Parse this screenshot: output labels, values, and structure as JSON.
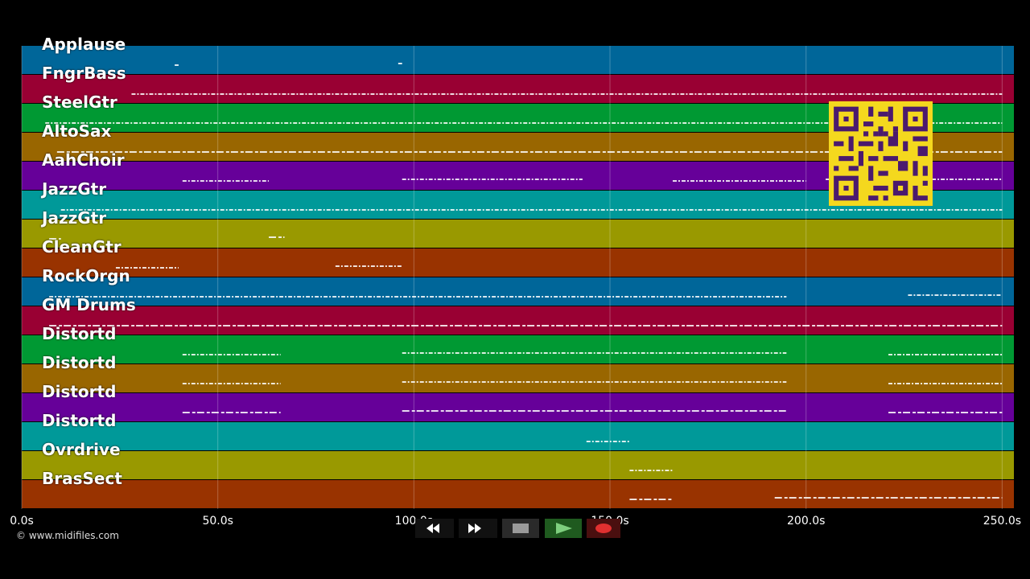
{
  "tracks": [
    {
      "name": "Applause",
      "color": "#006699"
    },
    {
      "name": "FngrBass",
      "color": "#990033"
    },
    {
      "name": "SteelGtr",
      "color": "#009933"
    },
    {
      "name": "AltoSax",
      "color": "#996600"
    },
    {
      "name": "AahChoir",
      "color": "#660099"
    },
    {
      "name": "JazzGtr",
      "color": "#009999"
    },
    {
      "name": "JazzGtr",
      "color": "#999900"
    },
    {
      "name": "CleanGtr",
      "color": "#993300"
    },
    {
      "name": "RockOrgn",
      "color": "#006699"
    },
    {
      "name": "GM Drums",
      "color": "#990033"
    },
    {
      "name": "Distortd",
      "color": "#009933"
    },
    {
      "name": "Distortd",
      "color": "#996600"
    },
    {
      "name": "Distortd",
      "color": "#660099"
    },
    {
      "name": "Distortd",
      "color": "#009999"
    },
    {
      "name": "Ovrdrive",
      "color": "#999900"
    },
    {
      "name": "BrasSect",
      "color": "#993300"
    }
  ],
  "timeline": {
    "max_seconds": 253,
    "ticks": [
      "0.0s",
      "50.0s",
      "100.0s",
      "150.0s",
      "200.0s",
      "250.0s"
    ],
    "tick_values": [
      0,
      50,
      100,
      150,
      200,
      250
    ]
  },
  "note_segments": [
    [
      [
        39,
        40
      ],
      [
        96,
        97
      ]
    ],
    [
      [
        28,
        250
      ]
    ],
    [
      [
        6,
        250
      ]
    ],
    [
      [
        9,
        250
      ]
    ],
    [
      [
        41,
        63
      ],
      [
        97,
        143
      ],
      [
        166,
        200
      ],
      [
        205,
        250
      ]
    ],
    [
      [
        10,
        250
      ]
    ],
    [
      [
        7,
        10
      ],
      [
        63,
        67
      ]
    ],
    [
      [
        24,
        40
      ],
      [
        80,
        97
      ]
    ],
    [
      [
        7,
        195
      ],
      [
        226,
        250
      ]
    ],
    [
      [
        7,
        250
      ]
    ],
    [
      [
        41,
        66
      ],
      [
        97,
        195
      ],
      [
        221,
        250
      ]
    ],
    [
      [
        41,
        66
      ],
      [
        97,
        195
      ],
      [
        221,
        250
      ]
    ],
    [
      [
        41,
        66
      ],
      [
        97,
        195
      ],
      [
        221,
        250
      ]
    ],
    [
      [
        144,
        155
      ]
    ],
    [
      [
        155,
        166
      ]
    ],
    [
      [
        155,
        166
      ],
      [
        192,
        250
      ]
    ]
  ],
  "copyright": "© www.midifiles.com",
  "transport": {
    "rewind": "rewind-icon",
    "fast_forward": "fast-forward-icon",
    "stop": "stop-icon",
    "play": "play-icon",
    "record": "record-icon"
  }
}
